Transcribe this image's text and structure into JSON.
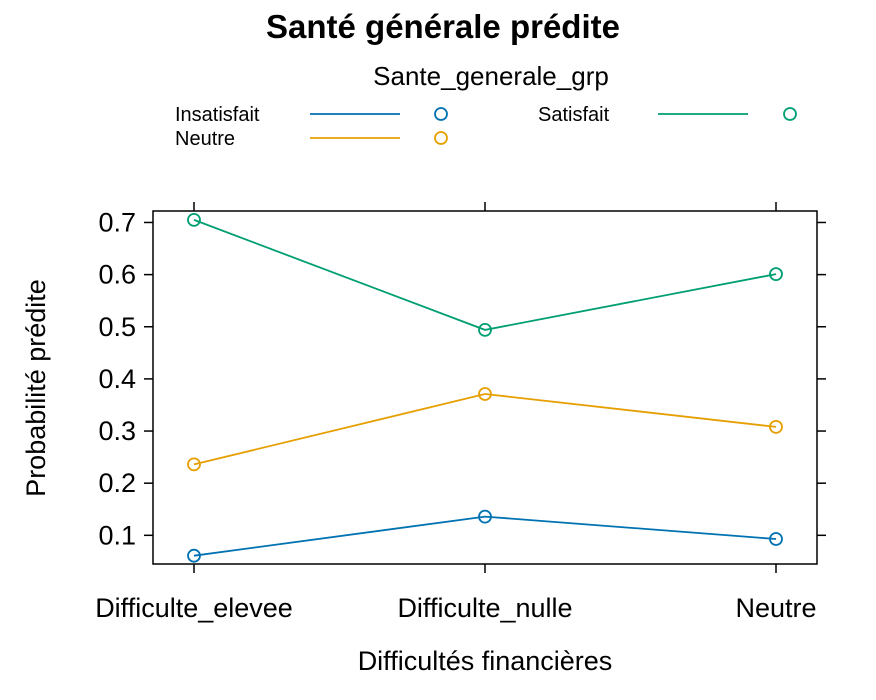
{
  "chart_data": {
    "type": "line",
    "title": "Santé générale prédite",
    "xlabel": "Difficultés financières",
    "ylabel": "Probabilité prédite",
    "categories": [
      "Difficulte_elevee",
      "Difficulte_nulle",
      "Neutre"
    ],
    "yticks": [
      "0.1",
      "0.2",
      "0.3",
      "0.4",
      "0.5",
      "0.6",
      "0.7"
    ],
    "ylim": [
      0.045,
      0.722
    ],
    "grid": false,
    "legend": {
      "title": "Sante_generale_grp",
      "placement": "top"
    },
    "series": [
      {
        "name": "Insatisfait",
        "color": "#0072B2",
        "values": [
          0.061,
          0.136,
          0.093
        ]
      },
      {
        "name": "Neutre",
        "color": "#E69F00",
        "values": [
          0.236,
          0.371,
          0.308
        ]
      },
      {
        "name": "Satisfait",
        "color": "#009E73",
        "values": [
          0.705,
          0.494,
          0.601
        ]
      }
    ]
  }
}
